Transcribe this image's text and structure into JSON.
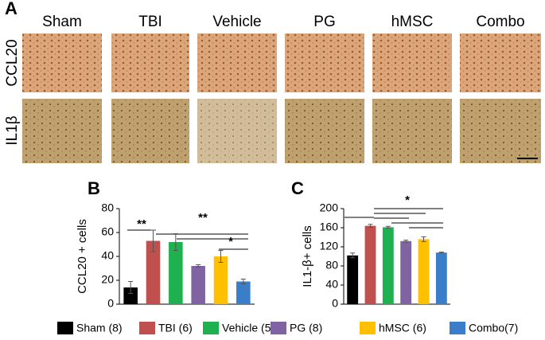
{
  "panel_a": {
    "label": "A",
    "columns": [
      "Sham",
      "TBI",
      "Vehicle",
      "PG",
      "hMSC",
      "Combo"
    ],
    "rows": [
      "CCL20",
      "IL1β"
    ]
  },
  "legend": {
    "entries": [
      {
        "name": "Sham (8)",
        "color": "#000000"
      },
      {
        "name": "TBI (6)",
        "color": "#c0504d"
      },
      {
        "name": "Vehicle (5)",
        "color": "#1fb050"
      },
      {
        "name": "PG (8)",
        "color": "#8064a2"
      },
      {
        "name": "hMSC (6)",
        "color": "#ffc000"
      },
      {
        "name": "Combo(7)",
        "color": "#3a7dc9"
      }
    ]
  },
  "chart_data": [
    {
      "type": "bar",
      "title": "B",
      "ylabel": "CCL20 + cells",
      "values": [
        14,
        53,
        52,
        32,
        40,
        19
      ],
      "errors": [
        5,
        9,
        7,
        1,
        5,
        2
      ],
      "colors": [
        "#000000",
        "#c0504d",
        "#1fb050",
        "#8064a2",
        "#ffc000",
        "#3a7dc9"
      ],
      "ylim": [
        0,
        80
      ],
      "yticks": [
        0,
        20,
        40,
        60,
        80
      ],
      "annotations": [
        "**",
        "**",
        "*"
      ]
    },
    {
      "type": "bar",
      "title": "C",
      "ylabel": "IL1-β+ cells",
      "values": [
        102,
        164,
        161,
        132,
        136,
        108
      ],
      "errors": [
        5,
        3,
        2,
        2,
        5,
        1
      ],
      "colors": [
        "#000000",
        "#c0504d",
        "#1fb050",
        "#8064a2",
        "#ffc000",
        "#3a7dc9"
      ],
      "ylim": [
        0,
        200
      ],
      "yticks": [
        0,
        40,
        80,
        120,
        160,
        200
      ],
      "annotations": [
        "*"
      ]
    }
  ]
}
